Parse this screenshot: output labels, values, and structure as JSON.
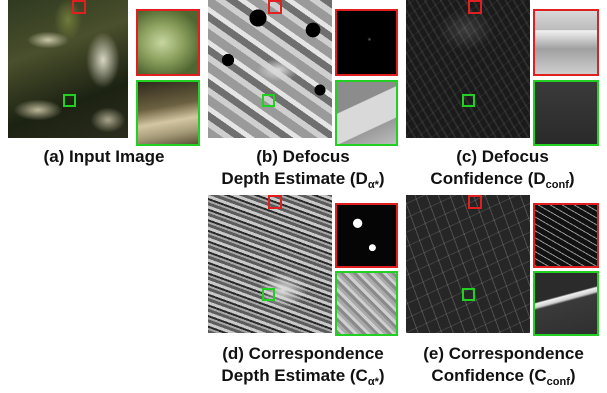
{
  "figure": {
    "panels": [
      {
        "id": "a",
        "caption_line1": "(a) Input Image",
        "caption_line2": ""
      },
      {
        "id": "b",
        "caption_line1": "(b) Defocus",
        "caption_line2_prefix": "Depth Estimate (D",
        "caption_line2_sub": "α*",
        "caption_line2_suffix": ")"
      },
      {
        "id": "c",
        "caption_line1": "(c) Defocus",
        "caption_line2_prefix": "Confidence (D",
        "caption_line2_sub": "conf",
        "caption_line2_suffix": ")"
      },
      {
        "id": "d",
        "caption_line1": "(d) Correspondence",
        "caption_line2_prefix": "Depth Estimate (C",
        "caption_line2_sub": "α*",
        "caption_line2_suffix": ")"
      },
      {
        "id": "e",
        "caption_line1": "(e) Correspondence",
        "caption_line2_prefix": "Confidence (C",
        "caption_line2_sub": "conf",
        "caption_line2_suffix": ")"
      }
    ],
    "colors": {
      "marker_red": "#e02020",
      "marker_green": "#22d022"
    }
  }
}
